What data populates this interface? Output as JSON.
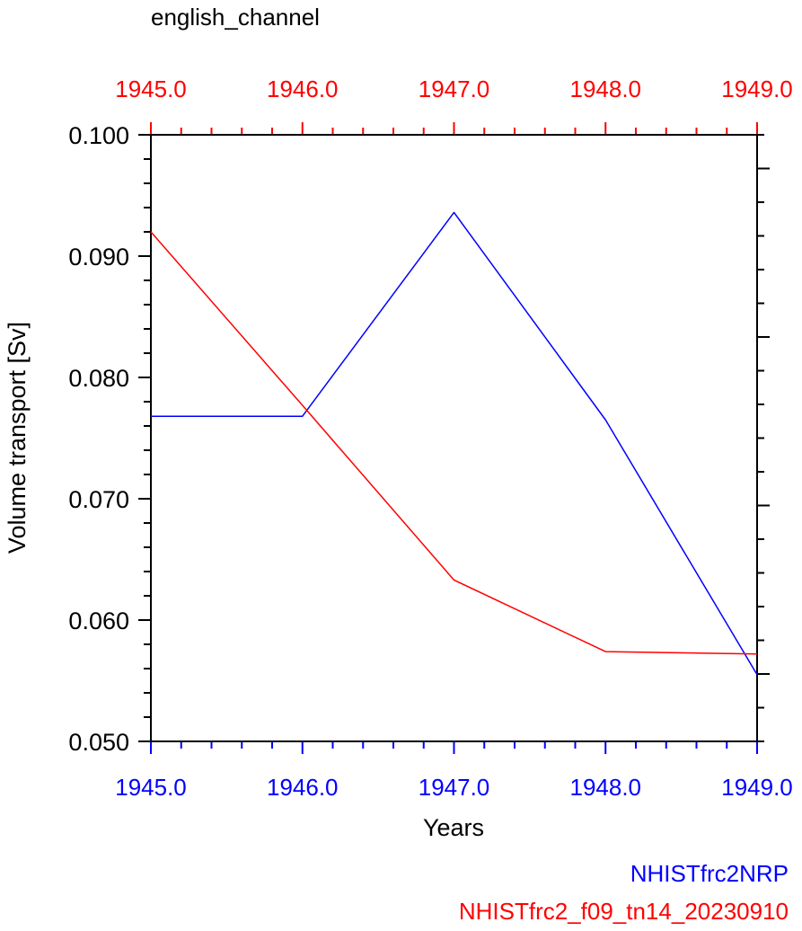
{
  "chart_data": {
    "type": "line",
    "title": "english_channel",
    "xlabel": "Years",
    "ylabel": "Volume transport [Sv]",
    "xlim": [
      1945.0,
      1949.0
    ],
    "ylim": [
      0.05,
      0.1
    ],
    "x_ticks": [
      "1945.0",
      "1946.0",
      "1947.0",
      "1948.0",
      "1949.0"
    ],
    "y_ticks": [
      "0.050",
      "0.060",
      "0.070",
      "0.080",
      "0.090",
      "0.100"
    ],
    "grid": false,
    "x": [
      1945.0,
      1946.0,
      1947.0,
      1948.0,
      1949.0
    ],
    "series": [
      {
        "name": "NHISTfrc2NRP",
        "color": "#0000ff",
        "values": [
          0.0768,
          0.0768,
          0.0936,
          0.0765,
          0.0555
        ]
      },
      {
        "name": "NHISTfrc2_f09_tn14_20230910",
        "color": "#ff0000",
        "values": [
          0.092,
          0.0777,
          0.0633,
          0.0574,
          0.0572
        ]
      }
    ],
    "top_axis_color": "#ff0000",
    "bottom_axis_color": "#0000ff",
    "legend_position": "bottom-right"
  }
}
